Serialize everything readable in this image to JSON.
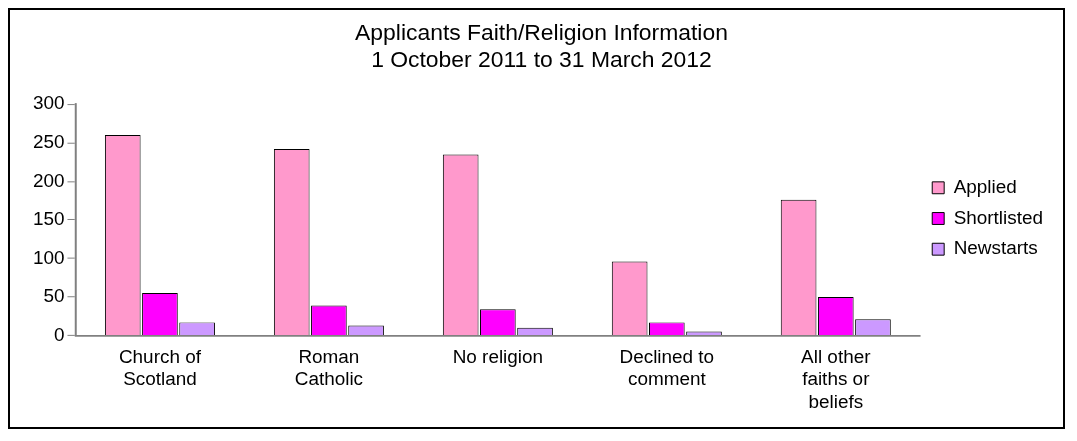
{
  "chart_data": {
    "type": "bar",
    "title": "Applicants Faith/Religion Information\n1 October 2011 to 31 March 2012",
    "categories": [
      "Church of Scotland",
      "Roman Catholic",
      "No religion",
      "Declined to comment",
      "All other faiths or beliefs"
    ],
    "series": [
      {
        "name": "Applied",
        "color": "#ff99cc",
        "values": [
          260,
          242,
          235,
          96,
          176
        ]
      },
      {
        "name": "Shortlisted",
        "color": "#ff00ff",
        "values": [
          55,
          39,
          34,
          17,
          50
        ]
      },
      {
        "name": "Newstarts",
        "color": "#cc99ff",
        "values": [
          17,
          13,
          10,
          5,
          21
        ]
      }
    ],
    "ylim": [
      0,
      300
    ],
    "yticks": [
      0,
      50,
      100,
      150,
      200,
      250,
      300
    ],
    "grid": false,
    "legend": "right"
  }
}
